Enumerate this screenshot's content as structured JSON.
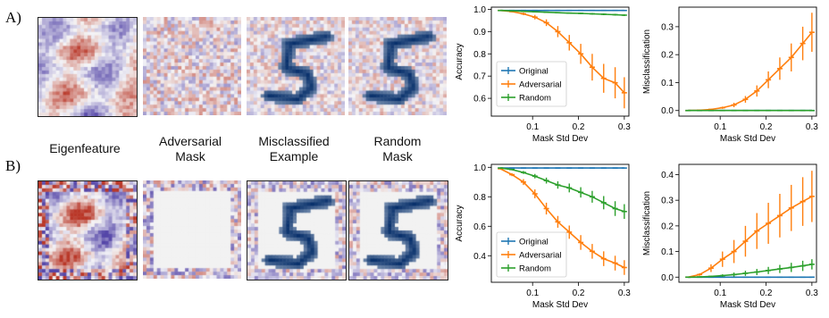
{
  "row_labels": [
    "A)",
    "B)"
  ],
  "captions": [
    {
      "line1": "Eigenfeature",
      "line2": ""
    },
    {
      "line1": "Adversarial",
      "line2": "Mask"
    },
    {
      "line1": "Misclassified",
      "line2": "Example"
    },
    {
      "line1": "Random",
      "line2": "Mask"
    }
  ],
  "image_panels": [
    {
      "row": "A",
      "name": "eigenfeature",
      "style": "eigen"
    },
    {
      "row": "A",
      "name": "adversarial-mask",
      "style": "noise"
    },
    {
      "row": "A",
      "name": "misclassified-example",
      "style": "digit"
    },
    {
      "row": "A",
      "name": "random-mask",
      "style": "digit"
    },
    {
      "row": "B",
      "name": "eigenfeature",
      "style": "eigen-strong"
    },
    {
      "row": "B",
      "name": "adversarial-mask",
      "style": "border-noise"
    },
    {
      "row": "B",
      "name": "misclassified-example",
      "style": "digit-border"
    },
    {
      "row": "B",
      "name": "random-mask",
      "style": "digit-border"
    }
  ],
  "colors": {
    "original": "#1f77b4",
    "adversarial": "#ff7f0e",
    "random": "#2ca02c"
  },
  "chart_data": [
    {
      "id": "A-accuracy",
      "type": "line",
      "xlabel": "Mask Std Dev",
      "ylabel": "Accuracy",
      "xlim": [
        0.01,
        0.31
      ],
      "ylim": [
        0.52,
        1.01
      ],
      "xticks": [
        0.1,
        0.2,
        0.3
      ],
      "xticklabels": [
        "0.1",
        "0.2",
        "0.3"
      ],
      "yticks": [
        0.6,
        0.7,
        0.8,
        0.9,
        1.0
      ],
      "yticklabels": [
        "0.6",
        "0.7",
        "0.8",
        "0.9",
        "1.0"
      ],
      "legend": "center-left",
      "x": [
        0.03,
        0.055,
        0.08,
        0.105,
        0.13,
        0.155,
        0.18,
        0.205,
        0.23,
        0.255,
        0.28,
        0.3
      ],
      "series": [
        {
          "name": "Original",
          "color": "#1f77b4",
          "values": [
            0.995,
            0.995,
            0.995,
            0.995,
            0.995,
            0.995,
            0.995,
            0.995,
            0.995,
            0.995,
            0.995,
            0.995
          ],
          "errors": [
            0,
            0,
            0,
            0,
            0,
            0,
            0,
            0,
            0,
            0,
            0,
            0
          ]
        },
        {
          "name": "Adversarial",
          "color": "#ff7f0e",
          "values": [
            0.995,
            0.99,
            0.98,
            0.965,
            0.94,
            0.9,
            0.85,
            0.8,
            0.74,
            0.69,
            0.67,
            0.625
          ],
          "errors": [
            0,
            0.003,
            0.006,
            0.01,
            0.015,
            0.025,
            0.035,
            0.045,
            0.06,
            0.065,
            0.07,
            0.07
          ]
        },
        {
          "name": "Random",
          "color": "#2ca02c",
          "values": [
            0.995,
            0.993,
            0.991,
            0.989,
            0.987,
            0.985,
            0.983,
            0.982,
            0.98,
            0.978,
            0.976,
            0.974
          ],
          "errors": [
            0,
            0.001,
            0.002,
            0.002,
            0.002,
            0.003,
            0.003,
            0.003,
            0.004,
            0.004,
            0.004,
            0.004
          ]
        }
      ]
    },
    {
      "id": "A-misclassification",
      "type": "line",
      "xlabel": "Mask Std Dev",
      "ylabel": "Misclassification",
      "xlim": [
        0.01,
        0.31
      ],
      "ylim": [
        -0.02,
        0.37
      ],
      "xticks": [
        0.1,
        0.2,
        0.3
      ],
      "xticklabels": [
        "0.1",
        "0.2",
        "0.3"
      ],
      "yticks": [
        0.0,
        0.1,
        0.2,
        0.3
      ],
      "yticklabels": [
        "0.0",
        "0.1",
        "0.2",
        "0.3"
      ],
      "legend": "none",
      "x": [
        0.03,
        0.055,
        0.08,
        0.105,
        0.13,
        0.155,
        0.18,
        0.205,
        0.23,
        0.255,
        0.28,
        0.3
      ],
      "series": [
        {
          "name": "Original",
          "color": "#1f77b4",
          "values": [
            0,
            0,
            0,
            0,
            0,
            0,
            0,
            0,
            0,
            0,
            0,
            0
          ],
          "errors": [
            0,
            0,
            0,
            0,
            0,
            0,
            0,
            0,
            0,
            0,
            0,
            0
          ]
        },
        {
          "name": "Adversarial",
          "color": "#ff7f0e",
          "values": [
            0.0,
            0.001,
            0.004,
            0.01,
            0.02,
            0.04,
            0.07,
            0.11,
            0.15,
            0.19,
            0.24,
            0.28
          ],
          "errors": [
            0,
            0.001,
            0.002,
            0.004,
            0.008,
            0.012,
            0.02,
            0.03,
            0.04,
            0.05,
            0.06,
            0.07
          ]
        },
        {
          "name": "Random",
          "color": "#2ca02c",
          "values": [
            0,
            0,
            0,
            0,
            0,
            0,
            0,
            0,
            0,
            0,
            0,
            0
          ],
          "errors": [
            0,
            0,
            0,
            0,
            0,
            0,
            0,
            0,
            0,
            0,
            0,
            0
          ]
        }
      ]
    },
    {
      "id": "B-accuracy",
      "type": "line",
      "xlabel": "Mask Std Dev",
      "ylabel": "Accuracy",
      "xlim": [
        0.01,
        0.31
      ],
      "ylim": [
        0.22,
        1.02
      ],
      "xticks": [
        0.1,
        0.2,
        0.3
      ],
      "xticklabels": [
        "0.1",
        "0.2",
        "0.3"
      ],
      "yticks": [
        0.4,
        0.6,
        0.8,
        1.0
      ],
      "yticklabels": [
        "0.4",
        "0.6",
        "0.8",
        "1.0"
      ],
      "legend": "lower-left",
      "x": [
        0.03,
        0.055,
        0.08,
        0.105,
        0.13,
        0.155,
        0.18,
        0.205,
        0.23,
        0.255,
        0.28,
        0.3
      ],
      "series": [
        {
          "name": "Original",
          "color": "#1f77b4",
          "values": [
            0.995,
            0.995,
            0.995,
            0.995,
            0.995,
            0.995,
            0.995,
            0.995,
            0.995,
            0.995,
            0.995,
            0.995
          ],
          "errors": [
            0,
            0,
            0,
            0,
            0,
            0,
            0,
            0,
            0,
            0,
            0,
            0
          ]
        },
        {
          "name": "Adversarial",
          "color": "#ff7f0e",
          "values": [
            0.99,
            0.95,
            0.9,
            0.82,
            0.72,
            0.63,
            0.56,
            0.49,
            0.43,
            0.38,
            0.35,
            0.32
          ],
          "errors": [
            0,
            0.01,
            0.02,
            0.03,
            0.04,
            0.04,
            0.045,
            0.05,
            0.05,
            0.05,
            0.05,
            0.05
          ]
        },
        {
          "name": "Random",
          "color": "#2ca02c",
          "values": [
            0.995,
            0.985,
            0.965,
            0.94,
            0.91,
            0.88,
            0.86,
            0.83,
            0.8,
            0.76,
            0.72,
            0.7
          ],
          "errors": [
            0,
            0.005,
            0.01,
            0.015,
            0.02,
            0.025,
            0.03,
            0.035,
            0.04,
            0.045,
            0.05,
            0.05
          ]
        }
      ]
    },
    {
      "id": "B-misclassification",
      "type": "line",
      "xlabel": "Mask Std Dev",
      "ylabel": "Misclassification",
      "xlim": [
        0.01,
        0.31
      ],
      "ylim": [
        -0.02,
        0.44
      ],
      "xticks": [
        0.1,
        0.2,
        0.3
      ],
      "xticklabels": [
        "0.1",
        "0.2",
        "0.3"
      ],
      "yticks": [
        0.0,
        0.1,
        0.2,
        0.3,
        0.4
      ],
      "yticklabels": [
        "0.0",
        "0.1",
        "0.2",
        "0.3",
        "0.4"
      ],
      "legend": "none",
      "x": [
        0.03,
        0.055,
        0.08,
        0.105,
        0.13,
        0.155,
        0.18,
        0.205,
        0.23,
        0.255,
        0.28,
        0.3
      ],
      "series": [
        {
          "name": "Original",
          "color": "#1f77b4",
          "values": [
            0,
            0,
            0,
            0,
            0,
            0,
            0,
            0,
            0,
            0,
            0,
            0
          ],
          "errors": [
            0,
            0,
            0,
            0,
            0,
            0,
            0,
            0,
            0,
            0,
            0,
            0
          ]
        },
        {
          "name": "Adversarial",
          "color": "#ff7f0e",
          "values": [
            0.0,
            0.01,
            0.035,
            0.07,
            0.1,
            0.14,
            0.18,
            0.21,
            0.24,
            0.27,
            0.295,
            0.315
          ],
          "errors": [
            0,
            0.005,
            0.015,
            0.03,
            0.045,
            0.06,
            0.07,
            0.08,
            0.085,
            0.09,
            0.095,
            0.1
          ]
        },
        {
          "name": "Random",
          "color": "#2ca02c",
          "values": [
            0.0,
            0.001,
            0.003,
            0.006,
            0.01,
            0.015,
            0.02,
            0.026,
            0.032,
            0.038,
            0.044,
            0.05
          ],
          "errors": [
            0,
            0.001,
            0.003,
            0.005,
            0.008,
            0.01,
            0.012,
            0.014,
            0.016,
            0.018,
            0.02,
            0.02
          ]
        }
      ]
    }
  ]
}
